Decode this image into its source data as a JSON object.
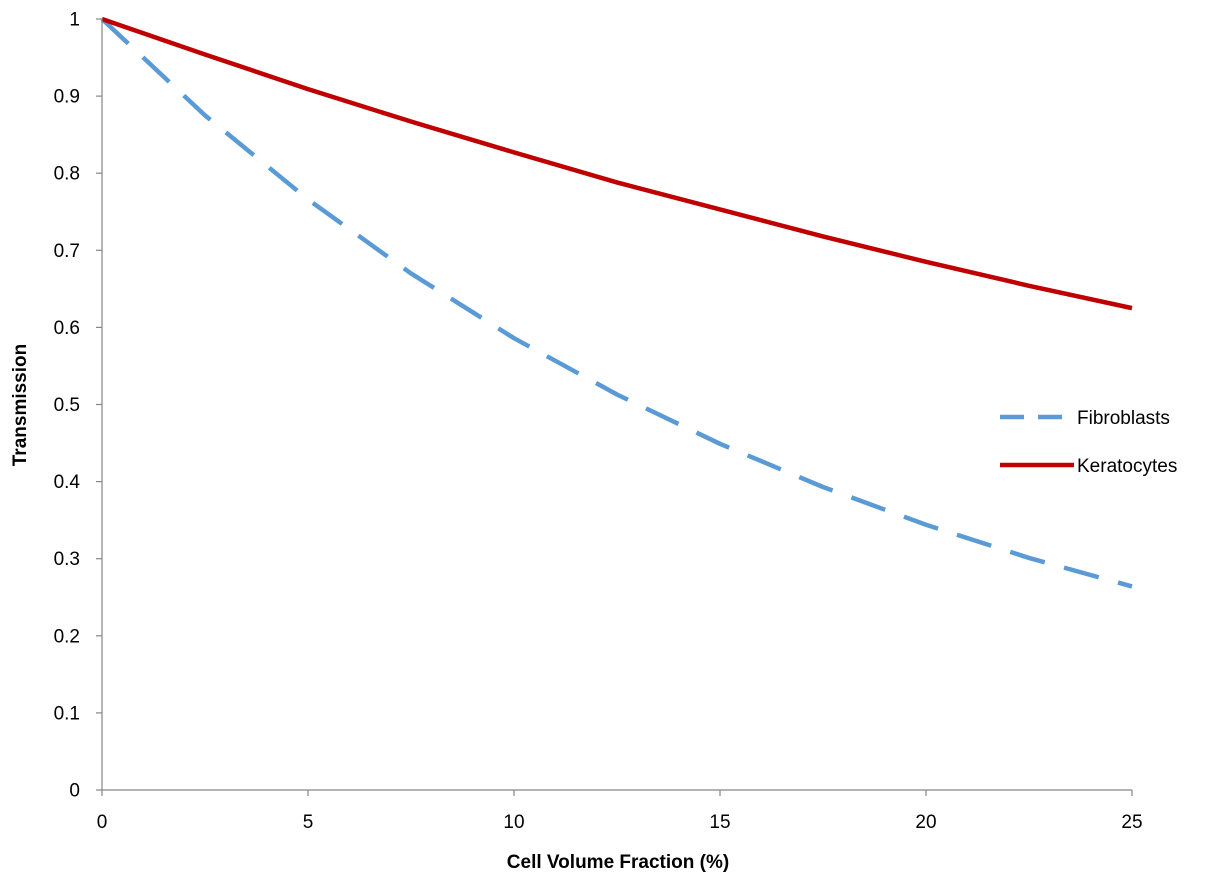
{
  "chart_data": {
    "type": "line",
    "title": "",
    "xlabel": "Cell Volume Fraction (%)",
    "ylabel": "Transmission",
    "xlim": [
      0,
      25
    ],
    "ylim": [
      0,
      1
    ],
    "x_ticks": [
      "0",
      "5",
      "10",
      "15",
      "20",
      "25"
    ],
    "y_ticks": [
      "0",
      "0.1",
      "0.2",
      "0.3",
      "0.4",
      "0.5",
      "0.6",
      "0.7",
      "0.8",
      "0.9",
      "1"
    ],
    "grid": false,
    "legend_position": "right",
    "x": [
      0,
      2.5,
      5,
      7.5,
      10,
      12.5,
      15,
      17.5,
      20,
      22.5,
      25
    ],
    "series": [
      {
        "name": "Fibroblasts",
        "style": "dashed",
        "color": "#5B9BD5",
        "values": [
          1.0,
          0.875,
          0.766,
          0.67,
          0.586,
          0.513,
          0.449,
          0.393,
          0.344,
          0.301,
          0.264
        ]
      },
      {
        "name": "Keratocytes",
        "style": "solid",
        "color": "#C00000",
        "values": [
          1.0,
          0.954,
          0.909,
          0.867,
          0.827,
          0.788,
          0.753,
          0.718,
          0.685,
          0.654,
          0.625
        ]
      }
    ]
  }
}
